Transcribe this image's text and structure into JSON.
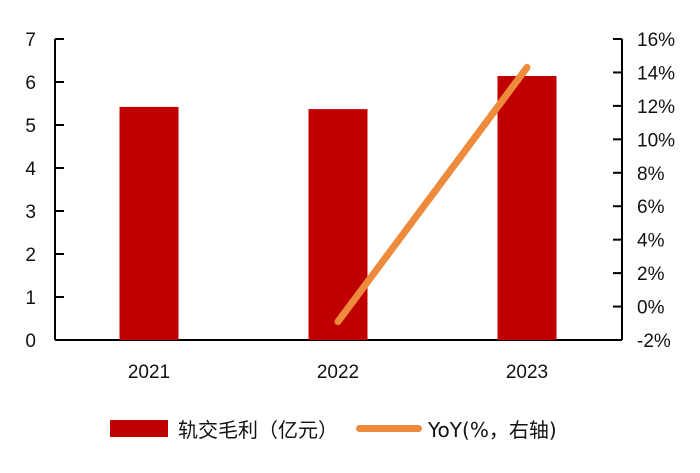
{
  "chart_data": {
    "type": "bar",
    "title": "",
    "categories": [
      "2021",
      "2022",
      "2023"
    ],
    "series": [
      {
        "name": "轨交毛利（亿元）",
        "type": "bar",
        "axis": "left",
        "color": "#C00000",
        "values": [
          5.42,
          5.37,
          6.14
        ]
      },
      {
        "name": "YoY(%，右轴)",
        "type": "line",
        "axis": "right",
        "color": "#ED8A3C",
        "values": [
          null,
          -0.9,
          14.3
        ]
      }
    ],
    "left_axis": {
      "min": 0,
      "max": 7,
      "ticks": [
        "0",
        "1",
        "2",
        "3",
        "4",
        "5",
        "6",
        "7"
      ]
    },
    "right_axis": {
      "min": -2,
      "max": 16,
      "ticks": [
        "-2%",
        "0%",
        "2%",
        "4%",
        "6%",
        "8%",
        "10%",
        "12%",
        "14%",
        "16%"
      ]
    },
    "xlabel": "",
    "ylabel": "",
    "y2label": "",
    "grid": false,
    "legend_position": "bottom"
  },
  "legend": {
    "bar_label": "轨交毛利（亿元）",
    "line_label": "YoY(%，右轴)"
  },
  "colors": {
    "bar": "#C00000",
    "line": "#ED8A3C",
    "axis": "#000000"
  }
}
